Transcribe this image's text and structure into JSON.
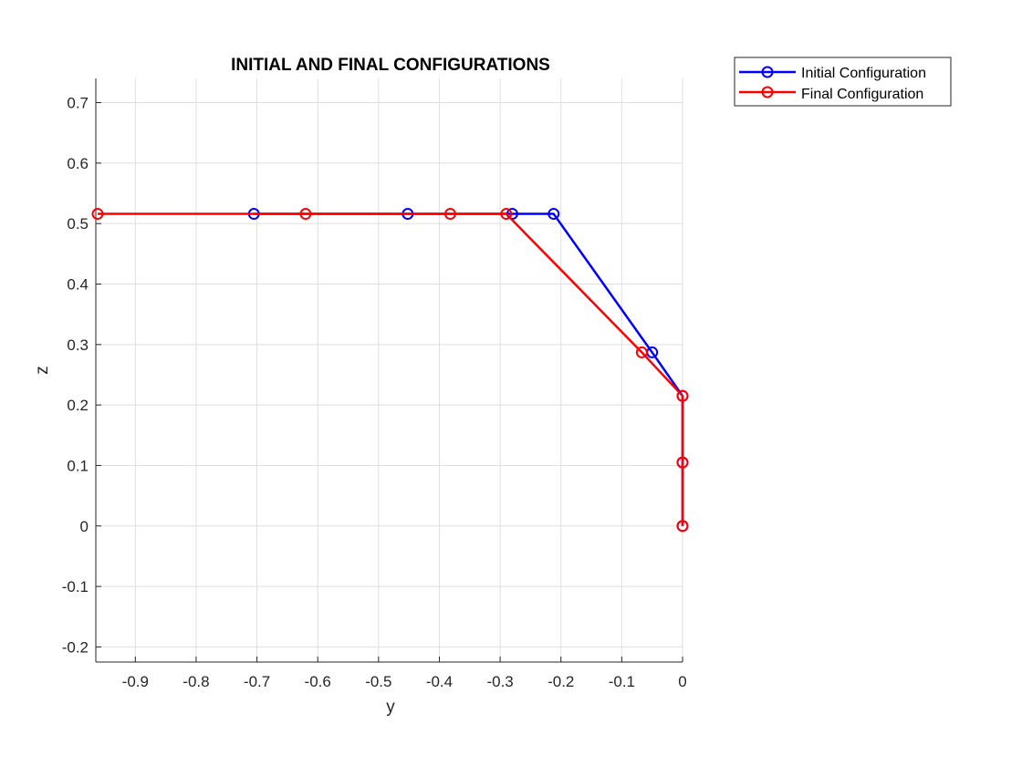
{
  "chart_data": {
    "type": "line",
    "title": "INITIAL AND FINAL CONFIGURATIONS",
    "xlabel": "y",
    "ylabel": "z",
    "xlim": [
      -0.965,
      0
    ],
    "ylim": [
      -0.225,
      0.74
    ],
    "xticks": [
      "-0.9",
      "-0.8",
      "-0.7",
      "-0.6",
      "-0.5",
      "-0.4",
      "-0.3",
      "-0.2",
      "-0.1",
      "0"
    ],
    "xtick_values": [
      -0.9,
      -0.8,
      -0.7,
      -0.6,
      -0.5,
      -0.4,
      -0.3,
      -0.2,
      -0.1,
      0
    ],
    "yticks": [
      "-0.2",
      "-0.1",
      "0",
      "0.1",
      "0.2",
      "0.3",
      "0.4",
      "0.5",
      "0.6",
      "0.7"
    ],
    "ytick_values": [
      -0.2,
      -0.1,
      0,
      0.1,
      0.2,
      0.3,
      0.4,
      0.5,
      0.6,
      0.7
    ],
    "grid": true,
    "legend_position": "outside-top-right",
    "series": [
      {
        "name": "Initial Configuration",
        "color": "#0000ff",
        "marker": "circle",
        "x": [
          0,
          0,
          0,
          -0.05,
          -0.212,
          -0.28,
          -0.452,
          -0.705
        ],
        "y": [
          0,
          0.105,
          0.215,
          0.287,
          0.516,
          0.516,
          0.516,
          0.516
        ]
      },
      {
        "name": "Final Configuration",
        "color": "#ff0000",
        "marker": "circle",
        "x": [
          0,
          0,
          0,
          -0.067,
          -0.29,
          -0.382,
          -0.62,
          -0.962
        ],
        "y": [
          0,
          0.105,
          0.215,
          0.287,
          0.516,
          0.516,
          0.516,
          0.516
        ]
      }
    ]
  }
}
